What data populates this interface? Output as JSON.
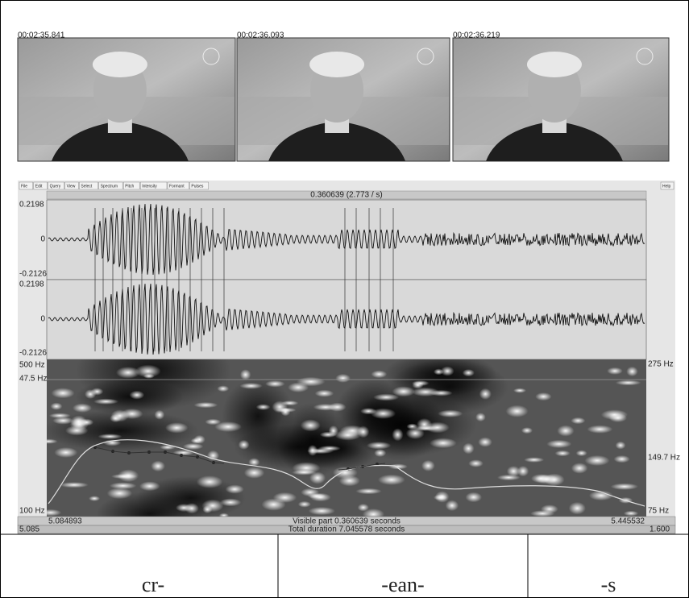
{
  "frames": [
    {
      "timestamp": "00:02:35.841"
    },
    {
      "timestamp": "00:02:36.093"
    },
    {
      "timestamp": "00:02:36.219"
    }
  ],
  "praat": {
    "menu": [
      "File",
      "Edit",
      "Query",
      "View",
      "Select",
      "Spectrum",
      "Pitch",
      "Intensity",
      "Formant",
      "Pulses"
    ],
    "help": "Help",
    "selection": "0.360639 (2.773 / s)",
    "waveform_1": {
      "top": "0.2198",
      "zero": "0",
      "bottom": "-0.2126"
    },
    "waveform_2": {
      "top": "0.2198",
      "zero": "0",
      "bottom": "-0.2126"
    },
    "spectrogram": {
      "left_top": "500 Hz",
      "left_mid": "47.5 Hz",
      "left_bottom": "100 Hz",
      "right_top": "275 Hz",
      "right_mid": "149.7 Hz",
      "right_bottom": "75 Hz"
    },
    "bottom": {
      "left_panel": "5.085",
      "start": "5.084893",
      "visible": "Visible part 0.360639 seconds",
      "end": "5.445532",
      "right_panel": "1.600",
      "total": "Total duration 7.045578 seconds"
    }
  },
  "table": {
    "cells": [
      "cr-",
      "-ean-",
      "-s"
    ]
  }
}
